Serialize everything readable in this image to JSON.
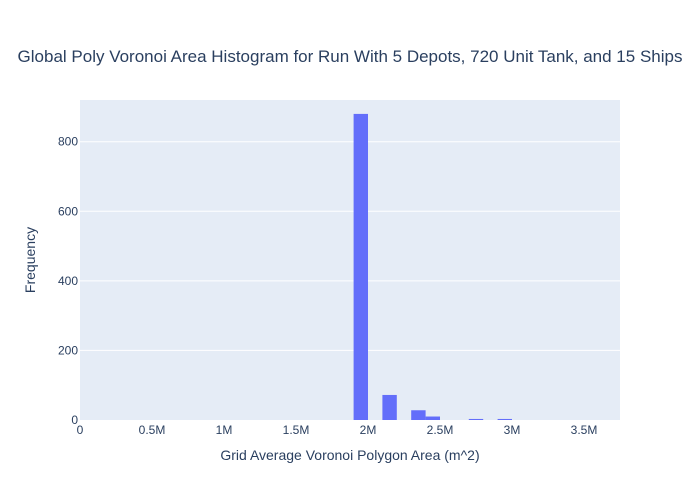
{
  "chart_data": {
    "type": "histogram",
    "title": "Global Poly Voronoi Area Histogram for Run With 5 Depots, 720 Unit Tank, and 15 Ships",
    "xlabel": "Grid Average Voronoi Polygon Area (m^2)",
    "ylabel": "Frequency",
    "xlim": [
      0,
      3750000
    ],
    "ylim": [
      0,
      920
    ],
    "x_ticks": [
      {
        "value": 0,
        "label": "0"
      },
      {
        "value": 500000,
        "label": "0.5M"
      },
      {
        "value": 1000000,
        "label": "1M"
      },
      {
        "value": 1500000,
        "label": "1.5M"
      },
      {
        "value": 2000000,
        "label": "2M"
      },
      {
        "value": 2500000,
        "label": "2.5M"
      },
      {
        "value": 3000000,
        "label": "3M"
      },
      {
        "value": 3500000,
        "label": "3.5M"
      }
    ],
    "y_ticks": [
      {
        "value": 0,
        "label": "0"
      },
      {
        "value": 200,
        "label": "200"
      },
      {
        "value": 400,
        "label": "400"
      },
      {
        "value": 600,
        "label": "600"
      },
      {
        "value": 800,
        "label": "800"
      }
    ],
    "bar_color": "#636efa",
    "plot_bg": "#e5ecf6",
    "grid": true,
    "bins": [
      {
        "x0": 1900000,
        "x1": 2000000,
        "count": 880
      },
      {
        "x0": 2100000,
        "x1": 2200000,
        "count": 72
      },
      {
        "x0": 2300000,
        "x1": 2400000,
        "count": 28
      },
      {
        "x0": 2400000,
        "x1": 2500000,
        "count": 10
      },
      {
        "x0": 2700000,
        "x1": 2800000,
        "count": 3
      },
      {
        "x0": 2900000,
        "x1": 3000000,
        "count": 3
      }
    ]
  }
}
